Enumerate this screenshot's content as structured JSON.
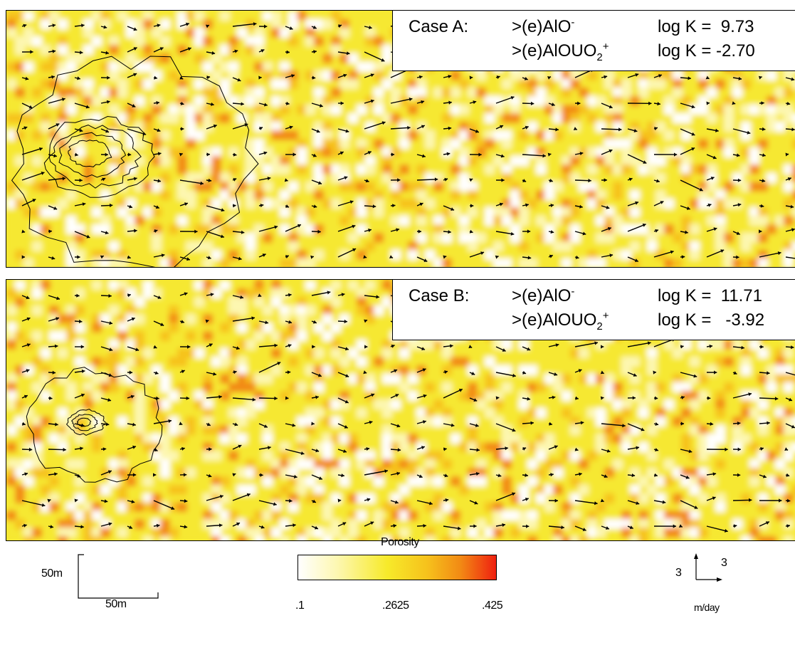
{
  "panels": [
    {
      "id": "A",
      "case_label": "Case A:",
      "species1": ">(e)AlO",
      "species1_sup": "-",
      "species2_main": ">(e)AlOUO",
      "species2_sub": "2",
      "species2_sup": "+",
      "logk1_label": "log K =  9.73",
      "logk2_label": "log K = -2.70"
    },
    {
      "id": "B",
      "case_label": "Case B:",
      "species1": ">(e)AlO",
      "species1_sup": "-",
      "species2_main": ">(e)AlOUO",
      "species2_sub": "2",
      "species2_sup": "+",
      "logk1_label": "log K =  11.71",
      "logk2_label": "log K =   -3.92"
    }
  ],
  "scale_bar": {
    "vertical_label": "50m",
    "horizontal_label": "50m"
  },
  "colorbar": {
    "title": "Porosity",
    "ticks": [
      ".1",
      ".2625",
      ".425"
    ],
    "colors": [
      "#ffffff",
      "#fdf7b0",
      "#f7ea2a",
      "#f6c21c",
      "#f28a14",
      "#f02010"
    ]
  },
  "velocity_key": {
    "label_left": "3",
    "label_right": "3",
    "unit": "m/day"
  }
}
